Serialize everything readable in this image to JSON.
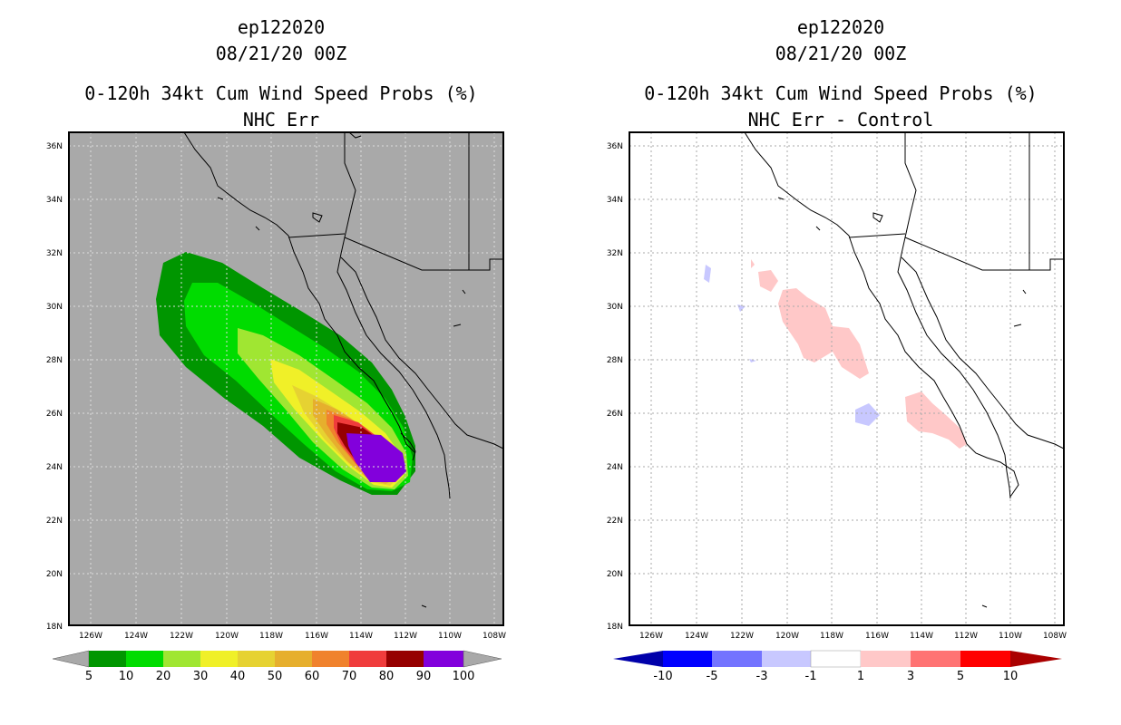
{
  "panels": [
    {
      "storm": "ep122020",
      "date": "08/21/20 00Z",
      "title": "0-120h 34kt Cum Wind Speed Probs (%)",
      "subtitle": "NHC Err",
      "background": "#a9a9a9",
      "colorbar": {
        "colors": [
          "#009600",
          "#00dc00",
          "#a0e632",
          "#f0f028",
          "#e6d232",
          "#e6af2d",
          "#f0822d",
          "#f03c3c",
          "#960000",
          "#8200dc"
        ],
        "labels": [
          "5",
          "10",
          "20",
          "30",
          "40",
          "50",
          "60",
          "70",
          "80",
          "90",
          "100"
        ]
      }
    },
    {
      "storm": "ep122020",
      "date": "08/21/20 00Z",
      "title": "0-120h 34kt Cum Wind Speed Probs (%)",
      "subtitle": "NHC Err - Control",
      "background": "#ffffff",
      "colorbar": {
        "colors": [
          "#0000aa",
          "#0000ff",
          "#7373ff",
          "#c8c8ff",
          "#ffffff",
          "#ffc8c8",
          "#ff7373",
          "#ff0000",
          "#aa0000"
        ],
        "labels": [
          "-10",
          "-5",
          "-3",
          "-1",
          "1",
          "3",
          "5",
          "10"
        ]
      }
    }
  ],
  "axes": {
    "lat_labels": [
      "36N",
      "34N",
      "32N",
      "30N",
      "28N",
      "26N",
      "24N",
      "22N",
      "20N",
      "18N"
    ],
    "lon_labels": [
      "126W",
      "124W",
      "122W",
      "120W",
      "118W",
      "116W",
      "114W",
      "112W",
      "110W",
      "108W"
    ]
  },
  "chart_data": [
    {
      "type": "filled-contour map",
      "title": "0-120h 34kt Cum Wind Speed Probs (%) — NHC Err",
      "units": "%",
      "levels": [
        5,
        10,
        20,
        30,
        40,
        50,
        60,
        70,
        80,
        90,
        100
      ],
      "lon_range": [
        -127,
        -107.5
      ],
      "lat_range": [
        18,
        36.5
      ],
      "max_region": {
        "level": "90-100",
        "center_lon": -113,
        "center_lat": 24.4
      }
    },
    {
      "type": "filled-contour map",
      "title": "0-120h 34kt Cum Wind Speed Probs (%) — NHC Err - Control",
      "units": "%",
      "levels": [
        -10,
        -5,
        -3,
        -1,
        1,
        3,
        5,
        10
      ],
      "lon_range": [
        -127,
        -107.5
      ],
      "lat_range": [
        18,
        36.5
      ],
      "positive_areas": [
        {
          "lon": -118,
          "lat": 28.8,
          "level": "1-3"
        },
        {
          "lon": -113,
          "lat": 25.8,
          "level": "1-3"
        },
        {
          "lon": -120.5,
          "lat": 30.8,
          "level": "1-3"
        }
      ],
      "negative_areas": [
        {
          "lon": -116,
          "lat": 26,
          "level": "-3 to -1"
        },
        {
          "lon": -123.6,
          "lat": 31.2,
          "level": "-3 to -1"
        }
      ]
    }
  ]
}
